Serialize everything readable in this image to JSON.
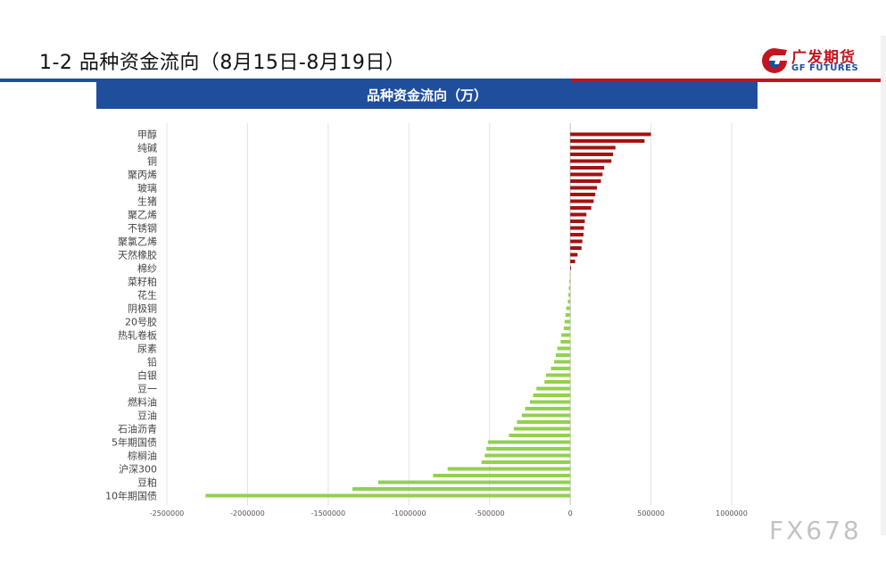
{
  "header": {
    "title": "1-2  品种资金流向（8月15日-8月19日）"
  },
  "logo": {
    "name_cn": "广发期货",
    "name_en": "GF FUTURES",
    "icon": "gf-logo-icon"
  },
  "watermark": "FX678",
  "colors": {
    "positive": "#a31212",
    "negative": "#92d050",
    "banner": "#1f4e9c",
    "accent_red": "#c2161e"
  },
  "chart_data": {
    "type": "bar",
    "orientation": "horizontal",
    "title": "品种资金流向（万）",
    "categories": [
      "甲醇",
      "纯碱",
      "铜",
      "聚丙烯",
      "玻璃",
      "生猪",
      "聚乙烯",
      "不锈钢",
      "聚氯乙烯",
      "天然橡胶",
      "棉纱",
      "菜籽粕",
      "花生",
      "阴极铜",
      "20号胶",
      "热轧卷板",
      "尿素",
      "铅",
      "白银",
      "豆一",
      "燃料油",
      "豆油",
      "石油沥青",
      "5年期国债",
      "棕榈油",
      "沪深300",
      "豆粕",
      "10年期国债"
    ],
    "bars": [
      {
        "label": "甲醇",
        "value": 500000
      },
      {
        "label": null,
        "value": 460000
      },
      {
        "label": "纯碱",
        "value": 280000
      },
      {
        "label": null,
        "value": 265000
      },
      {
        "label": "铜",
        "value": 255000
      },
      {
        "label": null,
        "value": 210000
      },
      {
        "label": "聚丙烯",
        "value": 200000
      },
      {
        "label": null,
        "value": 190000
      },
      {
        "label": "玻璃",
        "value": 165000
      },
      {
        "label": null,
        "value": 155000
      },
      {
        "label": "生猪",
        "value": 145000
      },
      {
        "label": null,
        "value": 130000
      },
      {
        "label": "聚乙烯",
        "value": 100000
      },
      {
        "label": null,
        "value": 90000
      },
      {
        "label": "不锈钢",
        "value": 85000
      },
      {
        "label": null,
        "value": 82000
      },
      {
        "label": "聚氯乙烯",
        "value": 75000
      },
      {
        "label": null,
        "value": 70000
      },
      {
        "label": "天然橡胶",
        "value": 45000
      },
      {
        "label": null,
        "value": 30000
      },
      {
        "label": "棉纱",
        "value": 5000
      },
      {
        "label": null,
        "value": -3000
      },
      {
        "label": "菜籽粕",
        "value": -6000
      },
      {
        "label": null,
        "value": -9000
      },
      {
        "label": "花生",
        "value": -12000
      },
      {
        "label": null,
        "value": -15000
      },
      {
        "label": "阴极铜",
        "value": -25000
      },
      {
        "label": null,
        "value": -30000
      },
      {
        "label": "20号胶",
        "value": -35000
      },
      {
        "label": null,
        "value": -40000
      },
      {
        "label": "热轧卷板",
        "value": -55000
      },
      {
        "label": null,
        "value": -60000
      },
      {
        "label": "尿素",
        "value": -80000
      },
      {
        "label": null,
        "value": -90000
      },
      {
        "label": "铅",
        "value": -100000
      },
      {
        "label": null,
        "value": -120000
      },
      {
        "label": "白银",
        "value": -150000
      },
      {
        "label": null,
        "value": -160000
      },
      {
        "label": "豆一",
        "value": -210000
      },
      {
        "label": null,
        "value": -230000
      },
      {
        "label": "燃料油",
        "value": -250000
      },
      {
        "label": null,
        "value": -280000
      },
      {
        "label": "豆油",
        "value": -300000
      },
      {
        "label": null,
        "value": -330000
      },
      {
        "label": "石油沥青",
        "value": -350000
      },
      {
        "label": null,
        "value": -380000
      },
      {
        "label": "5年期国债",
        "value": -510000
      },
      {
        "label": null,
        "value": -520000
      },
      {
        "label": "棕榈油",
        "value": -530000
      },
      {
        "label": null,
        "value": -550000
      },
      {
        "label": "沪深300",
        "value": -760000
      },
      {
        "label": null,
        "value": -850000
      },
      {
        "label": "豆粕",
        "value": -1190000
      },
      {
        "label": null,
        "value": -1350000
      },
      {
        "label": "10年期国债",
        "value": -2260000
      }
    ],
    "xticks": [
      -2500000,
      -2000000,
      -1500000,
      -1000000,
      -500000,
      0,
      500000,
      1000000
    ],
    "xtick_labels": [
      "-2500000",
      "-2000000",
      "-1500000",
      "-1000000",
      "-500000",
      "0",
      "500000",
      "1000000"
    ],
    "xlim": [
      -2500000,
      1000000
    ],
    "grid": true,
    "legend": "none",
    "xlabel": "",
    "ylabel": ""
  }
}
